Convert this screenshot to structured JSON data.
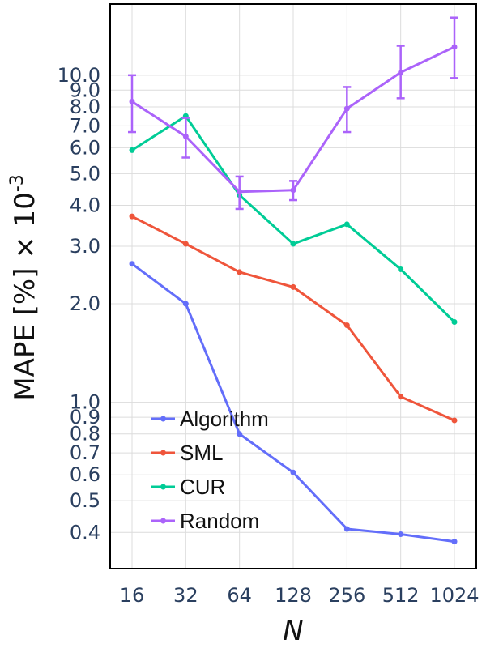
{
  "chart_data": {
    "type": "line",
    "xlabel": "N",
    "ylabel": {
      "main": "MAPE [%] × 10",
      "sup": "-3"
    },
    "x": [
      16,
      32,
      64,
      128,
      256,
      512,
      1024
    ],
    "x_tick_labels": [
      "16",
      "32",
      "64",
      "128",
      "256",
      "512",
      "1024"
    ],
    "y_scale": "log",
    "ylim": [
      0.31,
      16.5
    ],
    "y_ticks": [
      0.4,
      0.5,
      0.6,
      0.7,
      0.8,
      0.9,
      1.0,
      2.0,
      3.0,
      4.0,
      5.0,
      6.0,
      7.0,
      8.0,
      9.0,
      10.0
    ],
    "y_tick_labels": [
      "0.4",
      "0.5",
      "0.6",
      "0.7",
      "0.8",
      "0.9",
      "1.0",
      "2.0",
      "3.0",
      "4.0",
      "5.0",
      "6.0",
      "7.0",
      "8.0",
      "9.0",
      "10.0"
    ],
    "grid": true,
    "legend_position": "bottom-left",
    "series": [
      {
        "name": "Algorithm",
        "color": "#636efa",
        "values": [
          2.65,
          2.0,
          0.8,
          0.61,
          0.41,
          0.395,
          0.375
        ]
      },
      {
        "name": "SML",
        "color": "#ef553b",
        "values": [
          3.7,
          3.05,
          2.5,
          2.25,
          1.72,
          1.04,
          0.88
        ]
      },
      {
        "name": "CUR",
        "color": "#00cc96",
        "values": [
          5.9,
          7.5,
          4.3,
          3.05,
          3.5,
          2.55,
          1.76
        ]
      },
      {
        "name": "Random",
        "color": "#ab63fa",
        "values": [
          8.3,
          6.5,
          4.4,
          4.45,
          7.9,
          10.2,
          12.2
        ],
        "error_low": [
          6.7,
          5.6,
          3.9,
          4.15,
          6.7,
          8.5,
          9.8
        ],
        "error_high": [
          10.0,
          7.4,
          4.9,
          4.75,
          9.2,
          12.3,
          15.0
        ]
      }
    ]
  }
}
